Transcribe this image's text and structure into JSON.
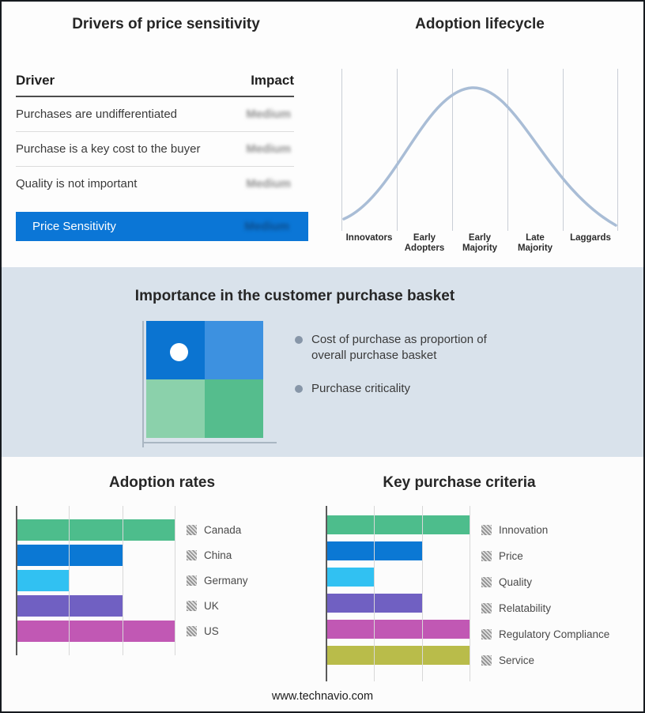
{
  "drivers": {
    "title": "Drivers of price sensitivity",
    "columns": {
      "driver": "Driver",
      "impact": "Impact"
    },
    "rows": [
      {
        "driver": "Purchases are undifferentiated",
        "impact": "Medium"
      },
      {
        "driver": "Purchase is a key cost to the buyer",
        "impact": "Medium"
      },
      {
        "driver": "Quality is not important",
        "impact": "Medium"
      }
    ],
    "summary": {
      "label": "Price Sensitivity",
      "impact": "Medium"
    },
    "accent_color": "#0b76d6"
  },
  "basket": {
    "title": "Importance in the customer purchase basket",
    "bullets": [
      "Cost of purchase as proportion of overall purchase basket",
      "Purchase criticality"
    ],
    "background": "#d9e2eb",
    "quadrant_colors": {
      "top_left": "#0b74d1",
      "top_right": "#3d91e0",
      "bottom_left": "#8bd1ab",
      "bottom_right": "#55bd8d"
    }
  },
  "footer": {
    "url": "www.technavio.com"
  },
  "chart_data": [
    {
      "type": "line",
      "title": "Adoption lifecycle",
      "x_categories": [
        "Innovators",
        "Early Adopters",
        "Early Majority",
        "Late Majority",
        "Laggards"
      ],
      "shape": "bell curve",
      "peak_stage": "Early Majority",
      "curve_points_norm": [
        [
          0,
          0.05
        ],
        [
          0.2,
          0.45
        ],
        [
          0.35,
          0.85
        ],
        [
          0.48,
          1.0
        ],
        [
          0.65,
          0.75
        ],
        [
          0.82,
          0.35
        ],
        [
          1.0,
          0.02
        ]
      ],
      "line_color": "#a9bdd6",
      "grid": true
    },
    {
      "type": "bar",
      "title": "Adoption rates",
      "orientation": "horizontal",
      "categories": [
        "Canada",
        "China",
        "Germany",
        "UK",
        "US"
      ],
      "values": [
        3,
        2,
        1,
        2,
        3
      ],
      "xlim": [
        0,
        3
      ],
      "colors": [
        "#4dbd8c",
        "#0b78d4",
        "#31c1f2",
        "#7060c2",
        "#c158b4"
      ],
      "grid": true,
      "legend_position": "right"
    },
    {
      "type": "bar",
      "title": "Key purchase criteria",
      "orientation": "horizontal",
      "categories": [
        "Innovation",
        "Price",
        "Quality",
        "Relatability",
        "Regulatory Compliance",
        "Service"
      ],
      "values": [
        3,
        2,
        1,
        2,
        3,
        3
      ],
      "xlim": [
        0,
        3
      ],
      "colors": [
        "#4dbd8c",
        "#0b78d4",
        "#31c1f2",
        "#7060c2",
        "#c158b4",
        "#b9bc4a"
      ],
      "grid": true,
      "legend_position": "right"
    },
    {
      "type": "table",
      "title": "Drivers of price sensitivity",
      "columns": [
        "Driver",
        "Impact"
      ],
      "rows": [
        [
          "Purchases are undifferentiated",
          "Medium"
        ],
        [
          "Purchase is a key cost to the buyer",
          "Medium"
        ],
        [
          "Quality is not important",
          "Medium"
        ],
        [
          "Price Sensitivity",
          "Medium"
        ]
      ]
    }
  ]
}
